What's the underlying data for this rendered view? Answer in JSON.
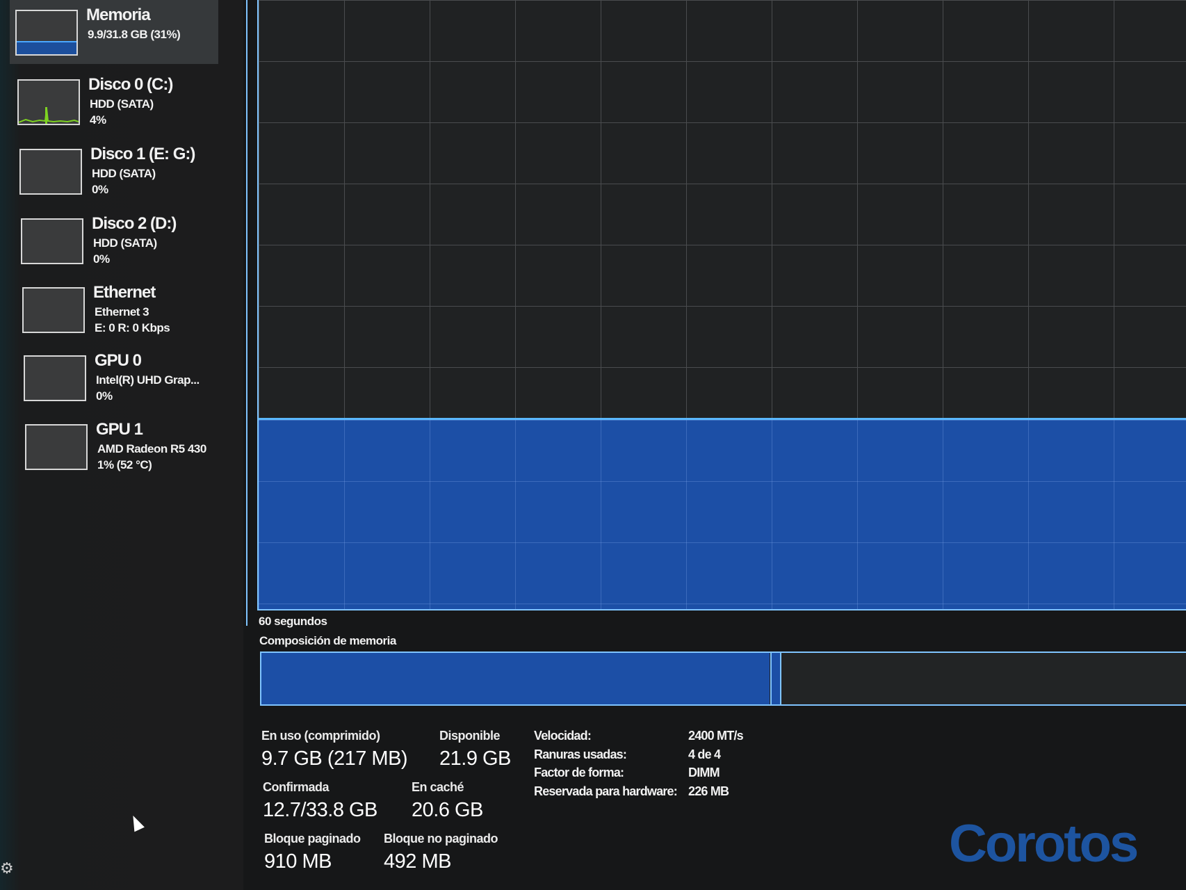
{
  "sidebar": {
    "items": [
      {
        "title": "Memoria",
        "line1": "9.9/31.8 GB (31%)",
        "line2": "",
        "selected": true
      },
      {
        "title": "Disco 0 (C:)",
        "line1": "HDD (SATA)",
        "line2": "4%"
      },
      {
        "title": "Disco 1 (E: G:)",
        "line1": "HDD (SATA)",
        "line2": "0%"
      },
      {
        "title": "Disco 2 (D:)",
        "line1": "HDD (SATA)",
        "line2": "0%"
      },
      {
        "title": "Ethernet",
        "line1": "Ethernet 3",
        "line2": "E: 0 R: 0 Kbps"
      },
      {
        "title": "GPU 0",
        "line1": "Intel(R) UHD Grap...",
        "line2": "0%"
      },
      {
        "title": "GPU 1",
        "line1": "AMD Radeon R5 430",
        "line2": "1% (52 °C)"
      }
    ]
  },
  "graph": {
    "time_label": "60 segundos",
    "usage_percent": 31
  },
  "composition": {
    "label": "Composición de memoria",
    "in_use_gb": 9.7,
    "total_gb": 31.8
  },
  "stats": {
    "in_use": {
      "label": "En uso (comprimido)",
      "value": "9.7 GB (217 MB)"
    },
    "available": {
      "label": "Disponible",
      "value": "21.9 GB"
    },
    "committed": {
      "label": "Confirmada",
      "value": "12.7/33.8 GB"
    },
    "cached": {
      "label": "En caché",
      "value": "20.6 GB"
    },
    "paged": {
      "label": "Bloque paginado",
      "value": "910 MB"
    },
    "nonpaged": {
      "label": "Bloque no paginado",
      "value": "492 MB"
    }
  },
  "properties": [
    {
      "label": "Velocidad:",
      "value": "2400 MT/s"
    },
    {
      "label": "Ranuras usadas:",
      "value": "4 de 4"
    },
    {
      "label": "Factor de forma:",
      "value": "DIMM"
    },
    {
      "label": "Reservada para hardware:",
      "value": "226 MB"
    }
  ],
  "watermark": "Corotos",
  "colors": {
    "accent": "#1c4fa6",
    "line": "#5ab8ff",
    "disk": "#7ed321"
  }
}
